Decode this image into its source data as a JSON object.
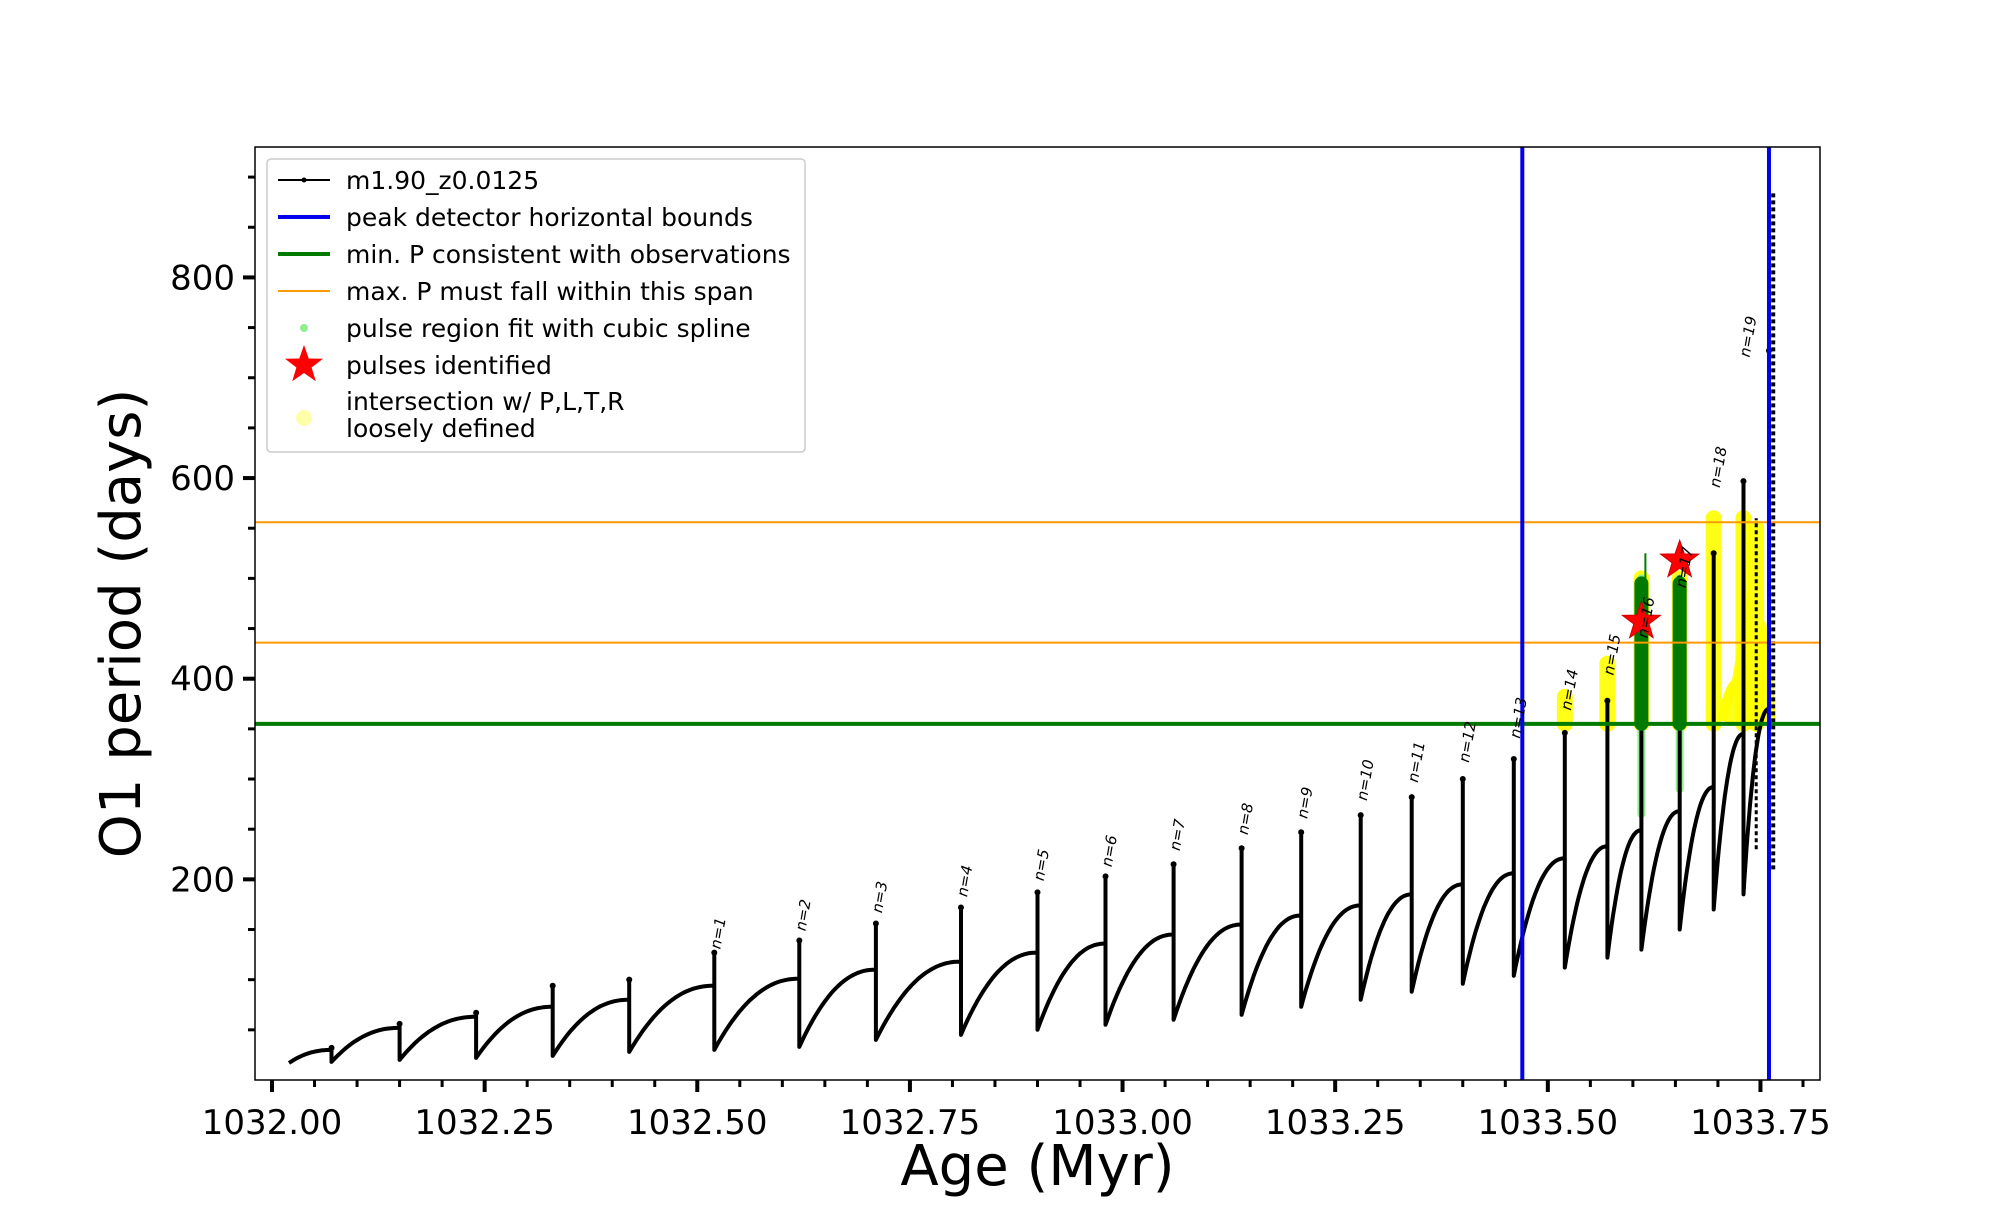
{
  "chart_data": {
    "type": "line",
    "xlabel": "Age (Myr)",
    "ylabel": "O1 period (days)",
    "xlim": [
      1031.98,
      1033.82
    ],
    "ylim": [
      0,
      930
    ],
    "x_ticks": [
      1032.0,
      1032.25,
      1032.5,
      1032.75,
      1033.0,
      1033.25,
      1033.5,
      1033.75
    ],
    "x_tick_labels": [
      "1032.00",
      "1032.25",
      "1032.50",
      "1032.75",
      "1033.00",
      "1033.25",
      "1033.50",
      "1033.75"
    ],
    "y_ticks": [
      200,
      400,
      600,
      800
    ],
    "y_tick_labels": [
      "200",
      "400",
      "600",
      "800"
    ],
    "grid": false,
    "legend_position": "top-left",
    "legend": [
      {
        "label": "m1.90_z0.0125",
        "style": "black-line-dots"
      },
      {
        "label": "peak detector horizontal bounds",
        "style": "blue-line"
      },
      {
        "label": "min. P consistent with observations",
        "style": "green-line"
      },
      {
        "label": "max. P must fall within this span",
        "style": "orange-line"
      },
      {
        "label": "pulse region fit with cubic spline",
        "style": "lightgreen-dot"
      },
      {
        "label": "pulses identified",
        "style": "red-star"
      },
      {
        "label": "intersection w/ P,L,T,R",
        "label2": "loosely defined",
        "style": "yellow-dot"
      }
    ],
    "vertical_lines": {
      "color": "#0000ee",
      "x": [
        1033.47,
        1033.76
      ]
    },
    "min_period_line": {
      "color": "#007a00",
      "y": 355
    },
    "max_period_span": {
      "color": "#ff9900",
      "y": [
        436,
        556
      ]
    },
    "series": [
      {
        "name": "m1.90_z0.0125",
        "color": "#000000",
        "cycles": [
          {
            "x0": 1032.02,
            "x1": 1032.07,
            "start": 17,
            "end": 30,
            "spike": 32
          },
          {
            "x0": 1032.07,
            "x1": 1032.15,
            "start": 18,
            "end": 52,
            "spike": 56
          },
          {
            "x0": 1032.15,
            "x1": 1032.24,
            "start": 20,
            "end": 63,
            "spike": 67
          },
          {
            "x0": 1032.24,
            "x1": 1032.33,
            "start": 22,
            "end": 73,
            "spike": 94
          },
          {
            "x0": 1032.33,
            "x1": 1032.42,
            "start": 24,
            "end": 80,
            "spike": 100
          },
          {
            "x0": 1032.42,
            "x1": 1032.52,
            "start": 28,
            "end": 94,
            "spike": 127
          },
          {
            "x0": 1032.52,
            "x1": 1032.62,
            "start": 30,
            "end": 101,
            "spike": 139
          },
          {
            "x0": 1032.62,
            "x1": 1032.71,
            "start": 33,
            "end": 110,
            "spike": 156
          },
          {
            "x0": 1032.71,
            "x1": 1032.81,
            "start": 40,
            "end": 118,
            "spike": 172
          },
          {
            "x0": 1032.81,
            "x1": 1032.9,
            "start": 45,
            "end": 127,
            "spike": 187
          },
          {
            "x0": 1032.9,
            "x1": 1032.98,
            "start": 50,
            "end": 136,
            "spike": 203
          },
          {
            "x0": 1032.98,
            "x1": 1033.06,
            "start": 55,
            "end": 145,
            "spike": 215
          },
          {
            "x0": 1033.06,
            "x1": 1033.14,
            "start": 60,
            "end": 155,
            "spike": 231
          },
          {
            "x0": 1033.14,
            "x1": 1033.21,
            "start": 65,
            "end": 164,
            "spike": 247
          },
          {
            "x0": 1033.21,
            "x1": 1033.28,
            "start": 73,
            "end": 174,
            "spike": 264
          },
          {
            "x0": 1033.28,
            "x1": 1033.34,
            "start": 80,
            "end": 185,
            "spike": 282
          },
          {
            "x0": 1033.34,
            "x1": 1033.4,
            "start": 88,
            "end": 195,
            "spike": 300
          },
          {
            "x0": 1033.4,
            "x1": 1033.46,
            "start": 96,
            "end": 206,
            "spike": 320
          },
          {
            "x0": 1033.46,
            "x1": 1033.52,
            "start": 104,
            "end": 221,
            "spike": 346
          },
          {
            "x0": 1033.52,
            "x1": 1033.57,
            "start": 112,
            "end": 233,
            "spike": 378
          },
          {
            "x0": 1033.57,
            "x1": 1033.61,
            "start": 122,
            "end": 249,
            "spike": 413
          },
          {
            "x0": 1033.61,
            "x1": 1033.655,
            "start": 130,
            "end": 268,
            "spike": 500
          },
          {
            "x0": 1033.655,
            "x1": 1033.695,
            "start": 150,
            "end": 292,
            "spike": 525
          },
          {
            "x0": 1033.695,
            "x1": 1033.73,
            "start": 170,
            "end": 345,
            "spike": 597
          },
          {
            "x0": 1033.73,
            "x1": 1033.76,
            "start": 185,
            "end": 370,
            "spike": 727
          }
        ],
        "final_spike": {
          "x": 1033.765,
          "low": 210,
          "high": 885
        }
      }
    ],
    "pulse_labels": [
      {
        "text": "n=1",
        "x": 1032.52,
        "y": 130
      },
      {
        "text": "n=2",
        "x": 1032.62,
        "y": 148
      },
      {
        "text": "n=3",
        "x": 1032.71,
        "y": 166
      },
      {
        "text": "n=4",
        "x": 1032.81,
        "y": 182
      },
      {
        "text": "n=5",
        "x": 1032.9,
        "y": 198
      },
      {
        "text": "n=6",
        "x": 1032.98,
        "y": 212
      },
      {
        "text": "n=7",
        "x": 1033.06,
        "y": 228
      },
      {
        "text": "n=8",
        "x": 1033.14,
        "y": 244
      },
      {
        "text": "n=9",
        "x": 1033.21,
        "y": 260
      },
      {
        "text": "n=10",
        "x": 1033.28,
        "y": 278
      },
      {
        "text": "n=11",
        "x": 1033.34,
        "y": 296
      },
      {
        "text": "n=12",
        "x": 1033.4,
        "y": 316
      },
      {
        "text": "n=13",
        "x": 1033.46,
        "y": 340
      },
      {
        "text": "n=14",
        "x": 1033.52,
        "y": 368
      },
      {
        "text": "n=15",
        "x": 1033.57,
        "y": 403
      },
      {
        "text": "n=16",
        "x": 1033.61,
        "y": 440
      },
      {
        "text": "n=17",
        "x": 1033.655,
        "y": 490
      },
      {
        "text": "n=18",
        "x": 1033.695,
        "y": 590
      },
      {
        "text": "n=19",
        "x": 1033.73,
        "y": 720
      }
    ],
    "pulses_identified": [
      {
        "label": "n=16",
        "x": 1033.61,
        "y": 457
      },
      {
        "label": "n=17",
        "x": 1033.655,
        "y": 518
      }
    ],
    "spline_regions": [
      {
        "x": 1033.61,
        "low": 265,
        "high": 500
      },
      {
        "x": 1033.655,
        "low": 290,
        "high": 500
      }
    ],
    "loosely_defined": [
      {
        "x": 1033.52,
        "low": 355,
        "high": 382
      },
      {
        "x": 1033.57,
        "low": 355,
        "high": 415
      },
      {
        "x": 1033.61,
        "low": 355,
        "high": 500
      },
      {
        "x": 1033.655,
        "low": 355,
        "high": 500
      },
      {
        "x": 1033.695,
        "low": 355,
        "high": 560
      },
      {
        "x": 1033.73,
        "low": 355,
        "high": 560
      },
      {
        "x": 1033.745,
        "low": 355,
        "high": 550
      }
    ]
  }
}
